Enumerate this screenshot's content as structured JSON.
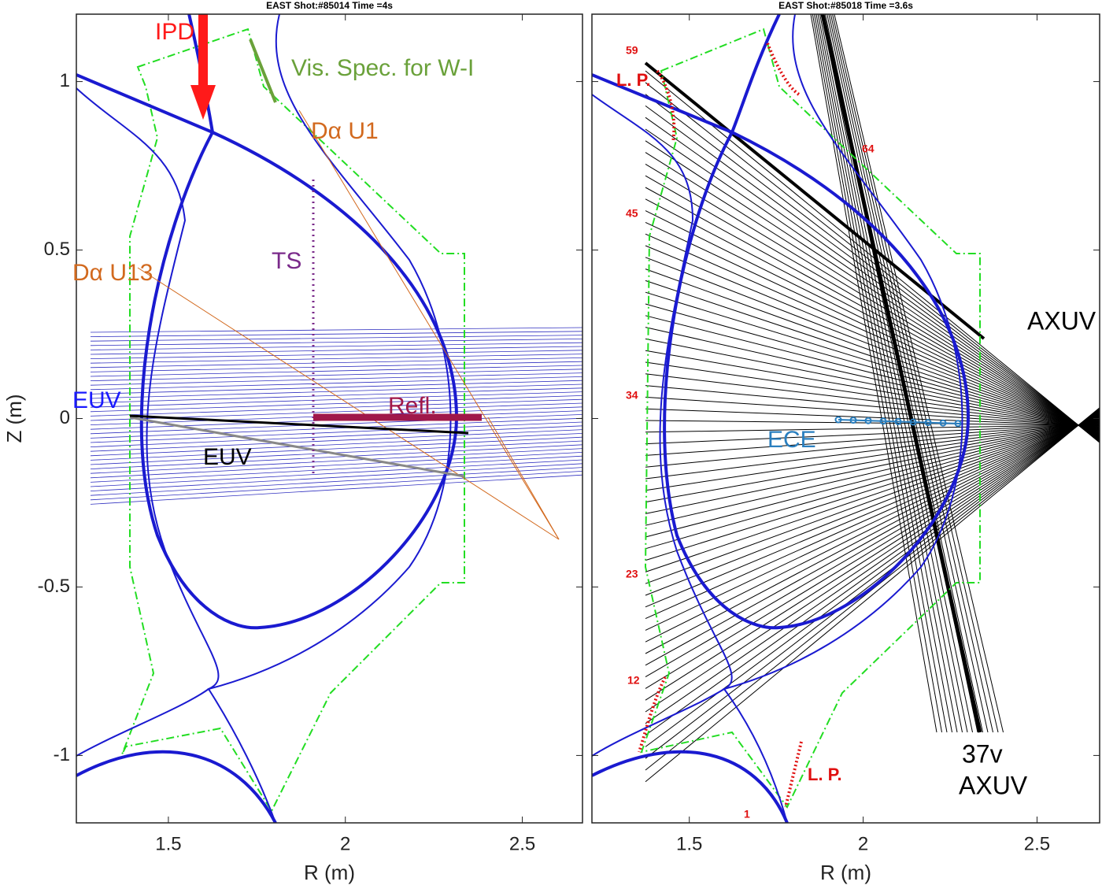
{
  "chart_data": [
    {
      "type": "plot",
      "title": "EAST Shot:#85014 Time =4s",
      "xlabel": "R (m)",
      "ylabel": "Z (m)",
      "xlim": [
        1.24,
        2.67
      ],
      "ylim": [
        -1.2,
        1.2
      ],
      "xticks": [
        1.5,
        2,
        2.5
      ],
      "yticks": [
        -1,
        -0.5,
        0,
        0.5,
        1
      ],
      "ytick_labels": true,
      "annotations": [
        {
          "text": "IPD",
          "color": "#ff1a1a"
        },
        {
          "text": "Vis. Spec. for W-I",
          "color": "#6aa13a"
        },
        {
          "text": "Dα U1",
          "color": "#d2691e"
        },
        {
          "text": "Dα U13",
          "color": "#d2691e"
        },
        {
          "text": "TS",
          "color": "#7a2a8a"
        },
        {
          "text": "EUV",
          "color": "#1a1aff"
        },
        {
          "text": "EUV",
          "color": "#000000"
        },
        {
          "text": "Refl.",
          "color": "#a0184a"
        }
      ]
    },
    {
      "type": "plot",
      "title": "EAST Shot:#85018 Time =3.6s",
      "xlabel": "R (m)",
      "xlim": [
        1.22,
        2.68
      ],
      "ylim": [
        -1.2,
        1.2
      ],
      "xticks": [
        1.5,
        2,
        2.5
      ],
      "yticks": [
        -1,
        -0.5,
        0,
        0.5,
        1
      ],
      "ytick_labels": false,
      "annotations": [
        {
          "text": "59",
          "color": "#e01010"
        },
        {
          "text": "L. P.",
          "color": "#e01010"
        },
        {
          "text": "64",
          "color": "#e01010"
        },
        {
          "text": "45",
          "color": "#e01010"
        },
        {
          "text": "34",
          "color": "#e01010"
        },
        {
          "text": "ECE",
          "color": "#2a7fbf"
        },
        {
          "text": "AXUV",
          "color": "#000000"
        },
        {
          "text": "23",
          "color": "#e01010"
        },
        {
          "text": "12",
          "color": "#e01010"
        },
        {
          "text": "37v",
          "color": "#000000"
        },
        {
          "text": "AXUV",
          "color": "#000000"
        },
        {
          "text": "L. P.",
          "color": "#e01010"
        },
        {
          "text": "1",
          "color": "#e01010"
        }
      ]
    }
  ]
}
